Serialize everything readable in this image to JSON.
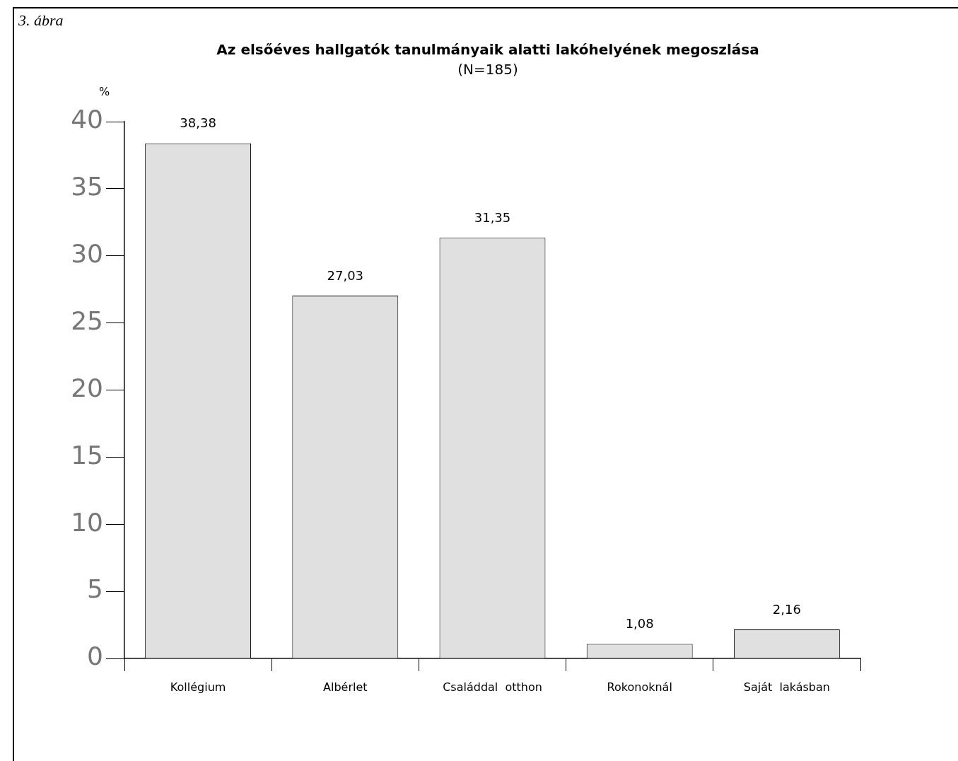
{
  "chart_data": {
    "type": "bar",
    "title": "Az elsőéves hallgatók tanulmányaik alatti lakóhelyének megoszlása",
    "subtitle": "(N=185)",
    "ylabel": "%",
    "annotations": [
      "3. ábra"
    ],
    "categories": [
      "Kollégium",
      "Albérlet",
      "Családdal  otthon",
      "Rokonoknál",
      "Saját  lakásban"
    ],
    "values": [
      38.38,
      27.03,
      31.35,
      1.08,
      2.16
    ],
    "value_labels": [
      "38,38",
      "27,03",
      "31,35",
      "1,08",
      "2,16"
    ],
    "color": "#e0e0e0",
    "ylim": [
      0,
      40
    ],
    "yticks": [
      0,
      5,
      10,
      15,
      20,
      25,
      30,
      35,
      40
    ],
    "grid": false,
    "legend": false
  }
}
